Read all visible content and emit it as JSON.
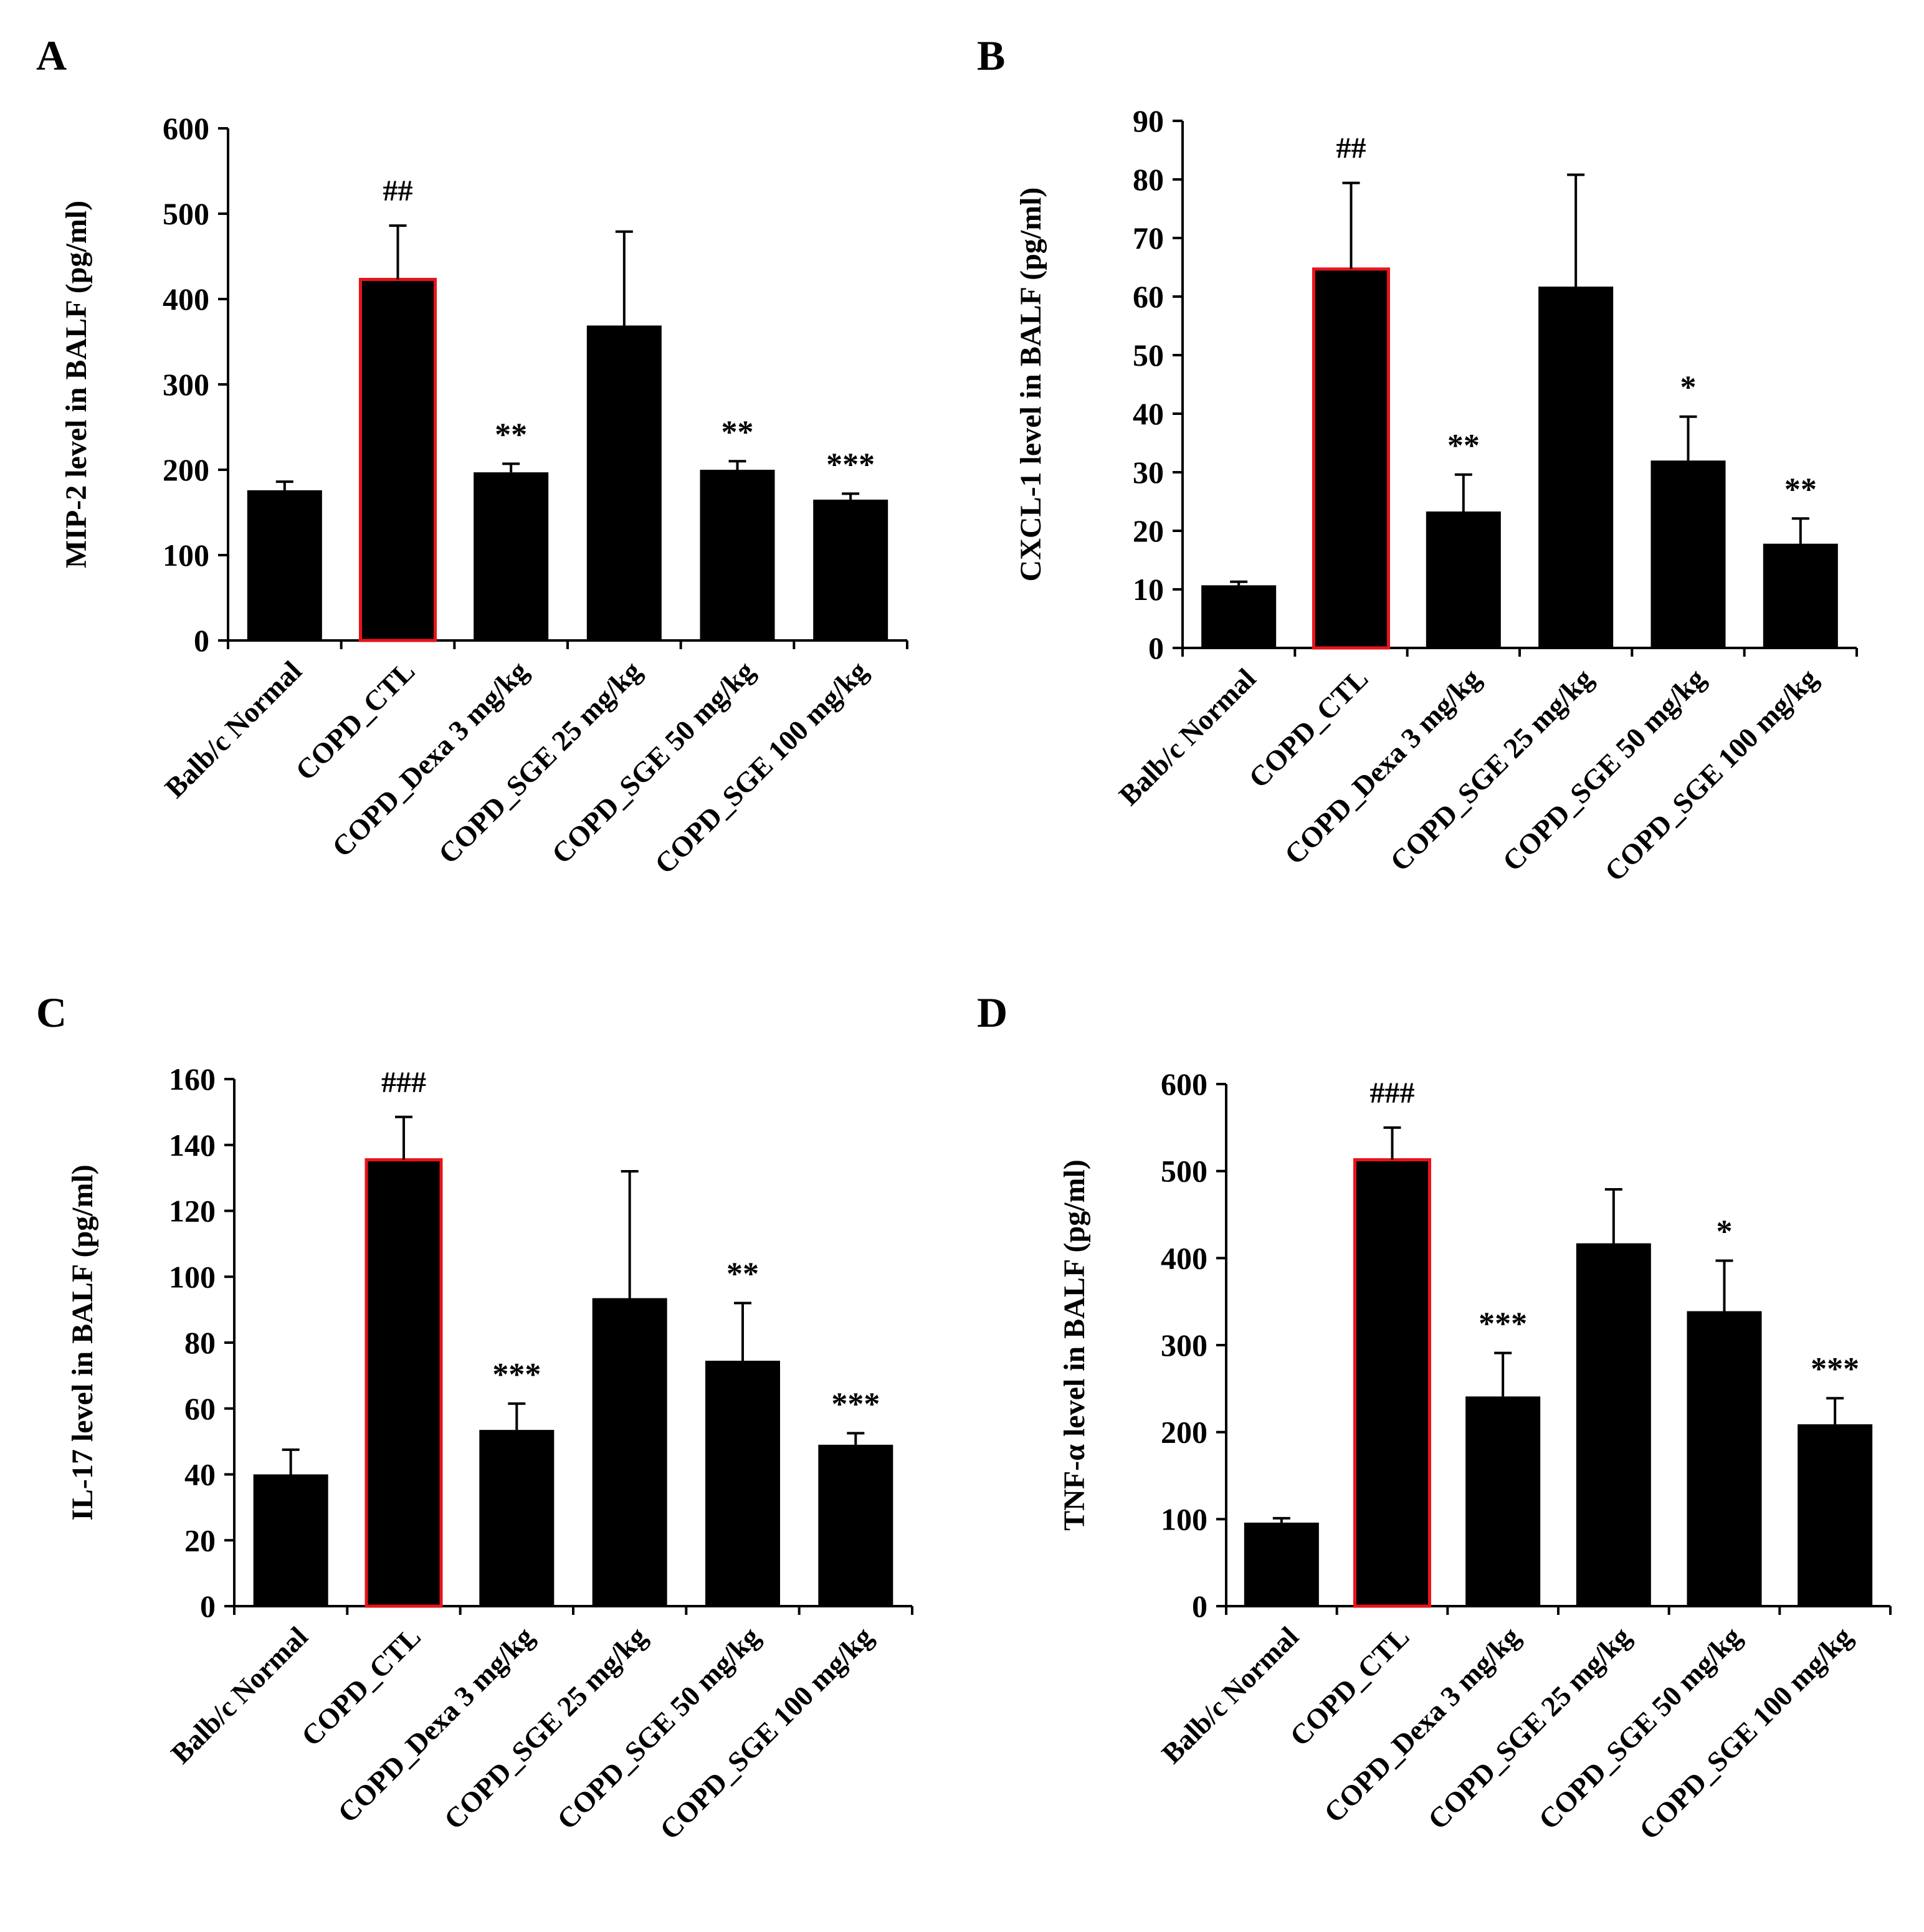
{
  "colors": {
    "bar_fill": "#000000",
    "highlight_edge": "#e8141b",
    "axis": "#000000",
    "background": "#ffffff"
  },
  "chart_data": [
    {
      "panel_label": "A",
      "type": "bar",
      "ylabel": "MIP-2 level in BALF (pg/ml)",
      "ylim": [
        0,
        600
      ],
      "yticks": [
        0,
        100,
        200,
        300,
        400,
        500,
        600
      ],
      "categories": [
        "Balb/c Normal",
        "COPD_CTL",
        "COPD_Dexa 3 mg/kg",
        "COPD_SGE 25 mg/kg",
        "COPD_SGE 50 mg/kg",
        "COPD_SGE 100 mg/kg"
      ],
      "values": [
        176,
        423,
        197,
        369,
        200,
        165
      ],
      "errors": [
        10,
        63,
        10,
        110,
        10,
        7
      ],
      "annotations": [
        "",
        "##",
        "**",
        "",
        "**",
        "***"
      ],
      "highlight_index": 1
    },
    {
      "panel_label": "B",
      "type": "bar",
      "ylabel": "CXCL-1 level in BALF (pg/ml)",
      "ylim": [
        0,
        90
      ],
      "yticks": [
        0,
        10,
        20,
        30,
        40,
        50,
        60,
        70,
        80,
        90
      ],
      "categories": [
        "Balb/c Normal",
        "COPD_CTL",
        "COPD_Dexa 3 mg/kg",
        "COPD_SGE 25 mg/kg",
        "COPD_SGE 50 mg/kg",
        "COPD_SGE 100 mg/kg"
      ],
      "values": [
        10.7,
        64.7,
        23.3,
        61.7,
        32,
        17.8
      ],
      "errors": [
        0.6,
        14.7,
        6.3,
        19.1,
        7.5,
        4.3
      ],
      "annotations": [
        "",
        "##",
        "**",
        "",
        "*",
        "**"
      ],
      "highlight_index": 1
    },
    {
      "panel_label": "C",
      "type": "bar",
      "ylabel": "IL-17 level in BALF (pg/ml)",
      "ylim": [
        0,
        160
      ],
      "yticks": [
        0,
        20,
        40,
        60,
        80,
        100,
        120,
        140,
        160
      ],
      "categories": [
        "Balb/c Normal",
        "COPD_CTL",
        "COPD_Dexa 3 mg/kg",
        "COPD_SGE 25 mg/kg",
        "COPD_SGE 50 mg/kg",
        "COPD_SGE 100 mg/kg"
      ],
      "values": [
        40,
        135.5,
        53.5,
        93.5,
        74.5,
        49
      ],
      "errors": [
        7.5,
        13,
        8,
        38.5,
        17.5,
        3.5
      ],
      "annotations": [
        "",
        "###",
        "***",
        "",
        "**",
        "***"
      ],
      "highlight_index": 1
    },
    {
      "panel_label": "D",
      "type": "bar",
      "ylabel": "TNF-α level in BALF (pg/ml)",
      "ylim": [
        0,
        600
      ],
      "yticks": [
        0,
        100,
        200,
        300,
        400,
        500,
        600
      ],
      "categories": [
        "Balb/c Normal",
        "COPD_CTL",
        "COPD_Dexa 3 mg/kg",
        "COPD_SGE 25 mg/kg",
        "COPD_SGE 50 mg/kg",
        "COPD_SGE 100 mg/kg"
      ],
      "values": [
        96,
        513,
        241,
        417,
        339,
        209
      ],
      "errors": [
        5,
        37,
        50,
        62,
        58,
        30
      ],
      "annotations": [
        "",
        "###",
        "***",
        "",
        "*",
        "***"
      ],
      "highlight_index": 1
    }
  ]
}
